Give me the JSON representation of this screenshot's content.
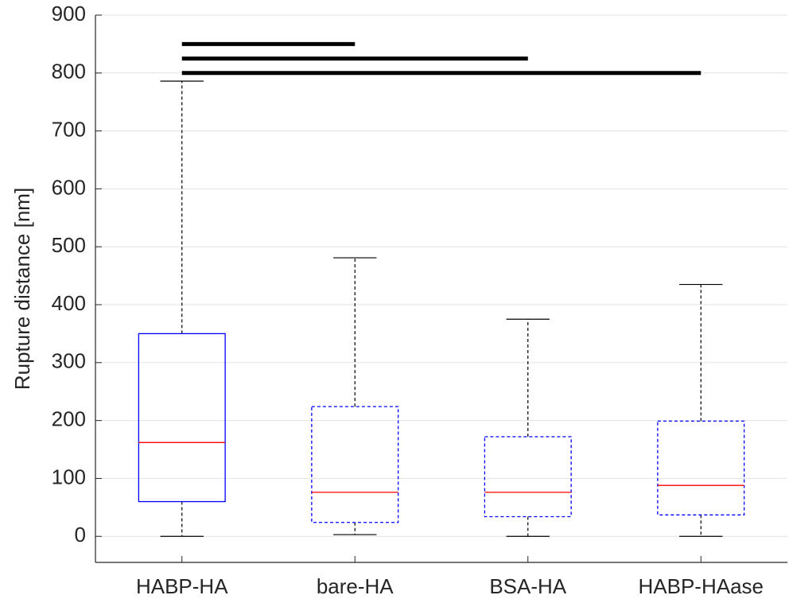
{
  "chart_data": {
    "type": "box",
    "ylabel": "Rupture distance [nm]",
    "categories": [
      "HABP-HA",
      "bare-HA",
      "BSA-HA",
      "HABP-HAase"
    ],
    "boxes": [
      {
        "whisker_low": 0,
        "q1": 60,
        "median": 162,
        "q3": 350,
        "whisker_high": 786,
        "linestyle": "solid"
      },
      {
        "whisker_low": 3,
        "q1": 24,
        "median": 76,
        "q3": 224,
        "whisker_high": 481,
        "linestyle": "dashed"
      },
      {
        "whisker_low": 0,
        "q1": 34,
        "median": 76,
        "q3": 172,
        "whisker_high": 375,
        "linestyle": "dashed"
      },
      {
        "whisker_low": 0,
        "q1": 37,
        "median": 88,
        "q3": 199,
        "whisker_high": 435,
        "linestyle": "dashed"
      }
    ],
    "box_color": "#0000ff",
    "median_color": "#ff0000",
    "whisker_color": "#000000",
    "ylim": [
      -45,
      900
    ],
    "yticks": [
      0,
      100,
      200,
      300,
      400,
      500,
      600,
      700,
      800,
      900
    ],
    "grid": true,
    "significance": [
      {
        "from": 0,
        "to": 1,
        "y": 850
      },
      {
        "from": 0,
        "to": 2,
        "y": 825
      },
      {
        "from": 0,
        "to": 3,
        "y": 800
      }
    ]
  }
}
